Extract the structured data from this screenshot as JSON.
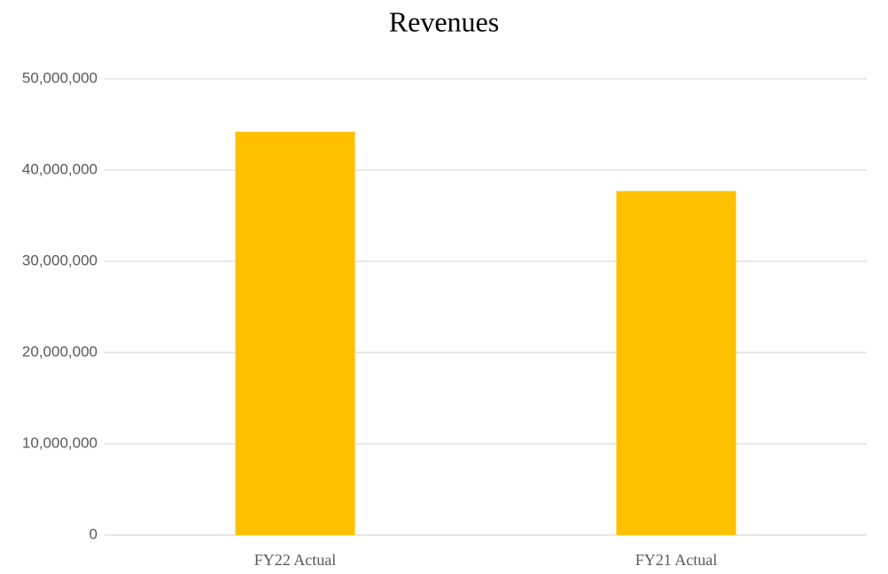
{
  "chart_data": {
    "type": "bar",
    "title": "Revenues",
    "categories": [
      "FY22 Actual",
      "FY21 Actual"
    ],
    "values": [
      44200000,
      37700000
    ],
    "color": "#ffc000",
    "ylim": [
      0,
      50000000
    ],
    "yticks": [
      0,
      {
        "value": 10000000,
        "label": "10,000,000"
      },
      {
        "value": 20000000,
        "label": "20,000,000"
      },
      {
        "value": 30000000,
        "label": "30,000,000"
      },
      {
        "value": 40000000,
        "label": "40,000,000"
      },
      {
        "value": 50000000,
        "label": "50,000,000"
      }
    ],
    "grid": true
  }
}
